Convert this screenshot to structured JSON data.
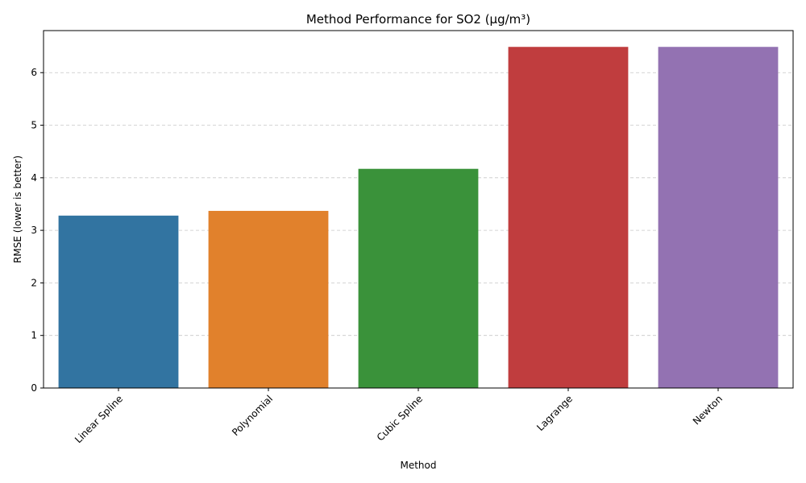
{
  "chart_data": {
    "type": "bar",
    "title": "Method Performance for SO2 (µg/m³)",
    "xlabel": "Method",
    "ylabel": "RMSE (lower is better)",
    "categories": [
      "Linear Spline",
      "Polynomial",
      "Cubic Spline",
      "Lagrange",
      "Newton"
    ],
    "values": [
      3.28,
      3.37,
      4.17,
      6.49,
      6.49
    ],
    "colors": [
      "#3274a1",
      "#e1812c",
      "#3a923a",
      "#c03d3e",
      "#9372b2"
    ],
    "ylim": [
      0,
      6.8
    ],
    "yticks": [
      0,
      1,
      2,
      3,
      4,
      5,
      6
    ],
    "grid": "y-dashed",
    "legend": "none"
  }
}
